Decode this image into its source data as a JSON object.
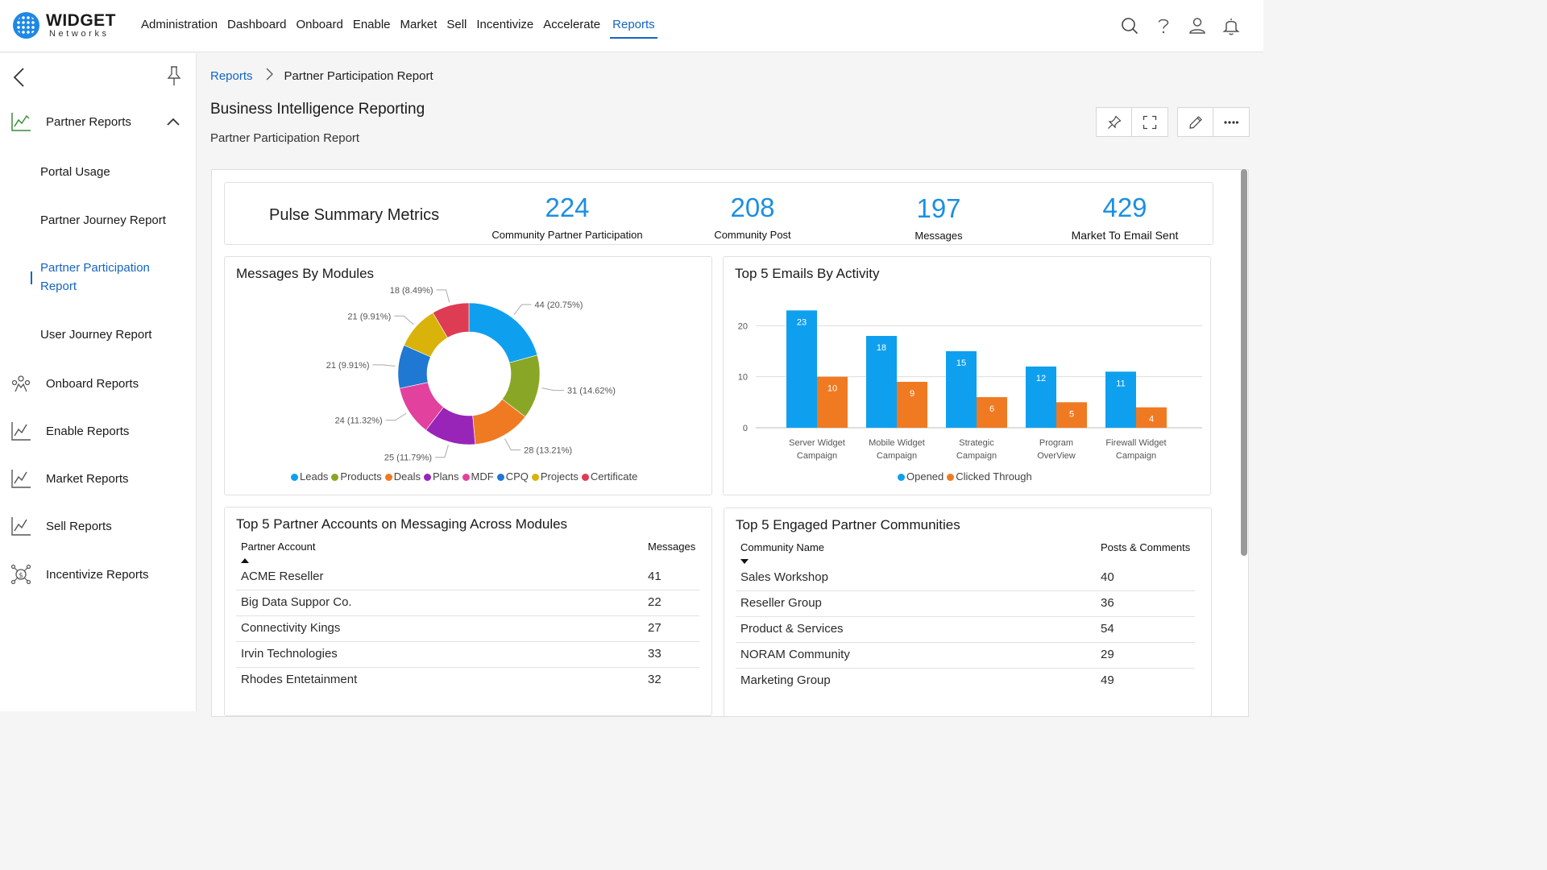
{
  "brand": {
    "name": "WIDGET",
    "sub": "Networks"
  },
  "nav": [
    "Administration",
    "Dashboard",
    "Onboard",
    "Enable",
    "Market",
    "Sell",
    "Incentivize",
    "Accelerate",
    "Reports"
  ],
  "sidebar": {
    "group_open": "Partner Reports",
    "subitems": [
      "Portal Usage",
      "Partner Journey Report",
      "Partner Participation Report",
      "User Journey Report"
    ],
    "groups": [
      "Onboard Reports",
      "Enable Reports",
      "Market Reports",
      "Sell Reports",
      "Incentivize Reports"
    ]
  },
  "breadcrumb": {
    "root": "Reports",
    "current": "Partner Participation Report"
  },
  "page": {
    "title": "Business Intelligence Reporting",
    "subtitle": "Partner Participation Report"
  },
  "pulse": {
    "title": "Pulse Summary Metrics",
    "metrics": [
      {
        "value": "224",
        "label": "Community Partner Participation"
      },
      {
        "value": "208",
        "label": "Community Post"
      },
      {
        "value": "197",
        "label": "Messages"
      },
      {
        "value": "429",
        "label": "Market To Email Sent"
      }
    ]
  },
  "donut": {
    "title": "Messages By Modules",
    "slices": [
      {
        "name": "Leads",
        "value": 44,
        "label": "44 (20.75%)",
        "color": "#0ea0ee"
      },
      {
        "name": "Products",
        "value": 31,
        "label": "31 (14.62%)",
        "color": "#8aa626"
      },
      {
        "name": "Deals",
        "value": 28,
        "label": "28 (13.21%)",
        "color": "#f07a22"
      },
      {
        "name": "Plans",
        "value": 25,
        "label": "25 (11.79%)",
        "color": "#9825b8"
      },
      {
        "name": "MDF",
        "value": 24,
        "label": "24 (11.32%)",
        "color": "#e2419e"
      },
      {
        "name": "CPQ",
        "value": 21,
        "label": "21 (9.91%)",
        "color": "#1f78d1"
      },
      {
        "name": "Projects",
        "value": 21,
        "label": "21 (9.91%)",
        "color": "#d9b20a"
      },
      {
        "name": "Certificate",
        "value": 18,
        "label": "18 (8.49%)",
        "color": "#dd3c52"
      }
    ]
  },
  "chart_data": {
    "type": "bar",
    "title": "Top 5 Emails By Activity",
    "categories": [
      "Server Widget Campaign",
      "Mobile Widget Campaign",
      "Strategic Campaign",
      "Program OverView",
      "Firewall Widget Campaign"
    ],
    "series": [
      {
        "name": "Opened",
        "values": [
          23,
          18,
          15,
          12,
          11
        ],
        "color": "#0ea0ee"
      },
      {
        "name": "Clicked Through",
        "values": [
          10,
          9,
          6,
          5,
          4
        ],
        "color": "#f07a22"
      }
    ],
    "yticks": [
      0,
      10,
      20
    ],
    "ylim": [
      0,
      24
    ],
    "grid": true,
    "legend": "bottom"
  },
  "accounts": {
    "title": "Top 5 Partner Accounts on Messaging Across Modules",
    "col1": "Partner Account",
    "col2": "Messages",
    "rows": [
      {
        "name": "ACME Reseller",
        "value": "41"
      },
      {
        "name": "Big Data Suppor Co.",
        "value": "22"
      },
      {
        "name": "Connectivity Kings",
        "value": "27"
      },
      {
        "name": "Irvin Technologies",
        "value": "33"
      },
      {
        "name": "Rhodes Entetainment",
        "value": "32"
      }
    ]
  },
  "communities": {
    "title": "Top 5 Engaged Partner Communities",
    "col1": "Community Name",
    "col2": "Posts & Comments",
    "rows": [
      {
        "name": "Sales Workshop",
        "value": "40"
      },
      {
        "name": "Reseller Group",
        "value": "36"
      },
      {
        "name": "Product & Services",
        "value": "54"
      },
      {
        "name": "NORAM Community",
        "value": "29"
      },
      {
        "name": "Marketing Group",
        "value": "49"
      }
    ]
  }
}
